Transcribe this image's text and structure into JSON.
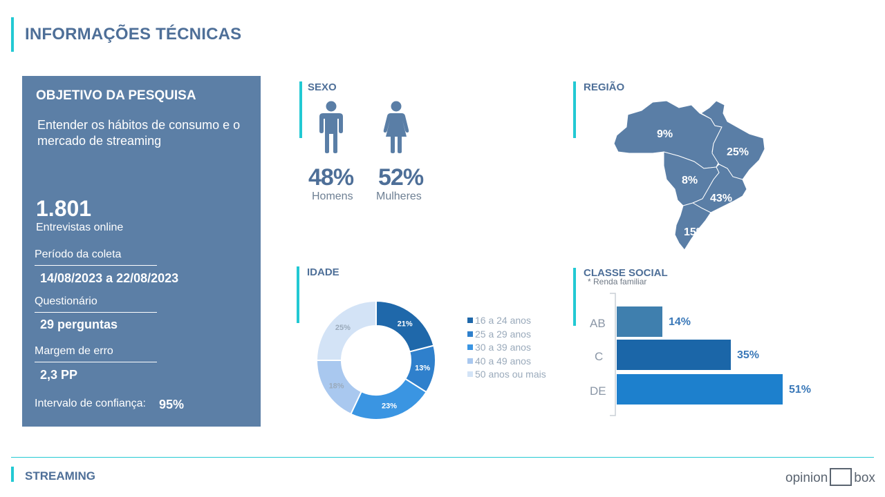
{
  "header": {
    "title": "INFORMAÇÕES TÉCNICAS"
  },
  "objective": {
    "title": "OBJETIVO DA PESQUISA",
    "text": "Entender os hábitos de consumo e o mercado de streaming",
    "interviews_value": "1.801",
    "interviews_label": "Entrevistas online",
    "period_label": "Período da coleta",
    "period_value": "14/08/2023 a 22/08/2023",
    "questionnaire_label": "Questionário",
    "questionnaire_value": "29 perguntas",
    "margin_label": "Margem de erro",
    "margin_value": "2,3 PP",
    "confidence_label": "Intervalo de confiança:",
    "confidence_value": "95%"
  },
  "sexo": {
    "title": "SEXO",
    "male_pct": "48%",
    "male_label": "Homens",
    "female_pct": "52%",
    "female_label": "Mulheres",
    "icon_color": "#5a7ea6"
  },
  "regiao": {
    "title": "REGIÃO",
    "labels": [
      "9%",
      "25%",
      "8%",
      "43%",
      "15%"
    ],
    "map_color": "#5a7ea6"
  },
  "idade": {
    "title": "IDADE"
  },
  "classe": {
    "title": "CLASSE SOCIAL",
    "note": "* Renda familiar"
  },
  "footer": {
    "section": "STREAMING",
    "logo_left": "opinion",
    "logo_right": "box"
  },
  "chart_data": [
    {
      "type": "pie",
      "title": "IDADE",
      "categories": [
        "16 a 24 anos",
        "25 a 29 anos",
        "30 a 39 anos",
        "40 a 49 anos",
        "50 anos ou mais"
      ],
      "values": [
        21,
        13,
        23,
        18,
        25
      ],
      "labels": [
        "21%",
        "13%",
        "23%",
        "18%",
        "25%"
      ],
      "colors": [
        "#1f68aa",
        "#2f80cc",
        "#3a95e2",
        "#a9c8ef",
        "#d3e3f6"
      ],
      "hole": true
    },
    {
      "type": "bar",
      "orientation": "horizontal",
      "title": "CLASSE SOCIAL",
      "categories": [
        "AB",
        "C",
        "DE"
      ],
      "values": [
        14,
        35,
        51
      ],
      "labels": [
        "14%",
        "35%",
        "51%"
      ],
      "colors": [
        "#3f7fae",
        "#1b66a8",
        "#1d80cd"
      ],
      "xlim": [
        0,
        51
      ]
    }
  ]
}
